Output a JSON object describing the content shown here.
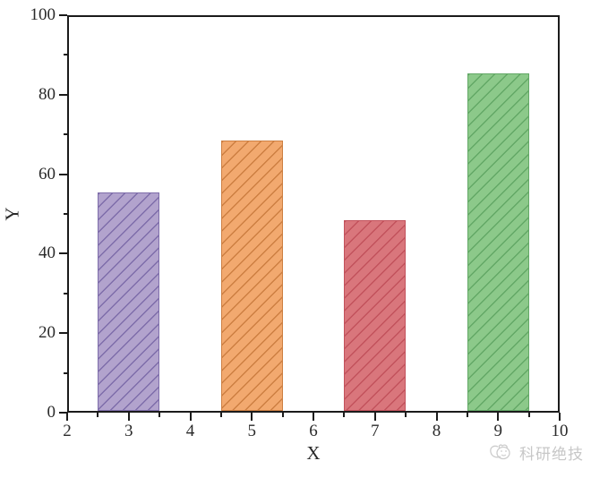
{
  "watermark": {
    "text": "科研绝技",
    "color": "#c7c7c7"
  },
  "chart_data": {
    "type": "bar",
    "title": "",
    "xlabel": "X",
    "ylabel": "Y",
    "x": [
      3,
      5,
      7,
      9
    ],
    "values": [
      55,
      68,
      48,
      85
    ],
    "bar_width": 1,
    "xlim": [
      2,
      10
    ],
    "ylim": [
      0,
      100
    ],
    "xticks": [
      2,
      3,
      4,
      5,
      6,
      7,
      8,
      9,
      10
    ],
    "yticks": [
      0,
      20,
      40,
      60,
      80,
      100
    ],
    "x_minor_step": 0.5,
    "y_minor_step": 10,
    "grid": false,
    "legend": false,
    "hatch": "/",
    "axis_color": "#1b1b1b",
    "bar_colors": [
      {
        "fill": "#b2a3cd",
        "hatch": "#7e6daa",
        "edge": "#7e6daa"
      },
      {
        "fill": "#f2a96f",
        "hatch": "#cd7f42",
        "edge": "#cd7f42"
      },
      {
        "fill": "#d9767c",
        "hatch": "#c2525c",
        "edge": "#c2525c"
      },
      {
        "fill": "#8cc98a",
        "hatch": "#63a866",
        "edge": "#63a866"
      }
    ]
  }
}
